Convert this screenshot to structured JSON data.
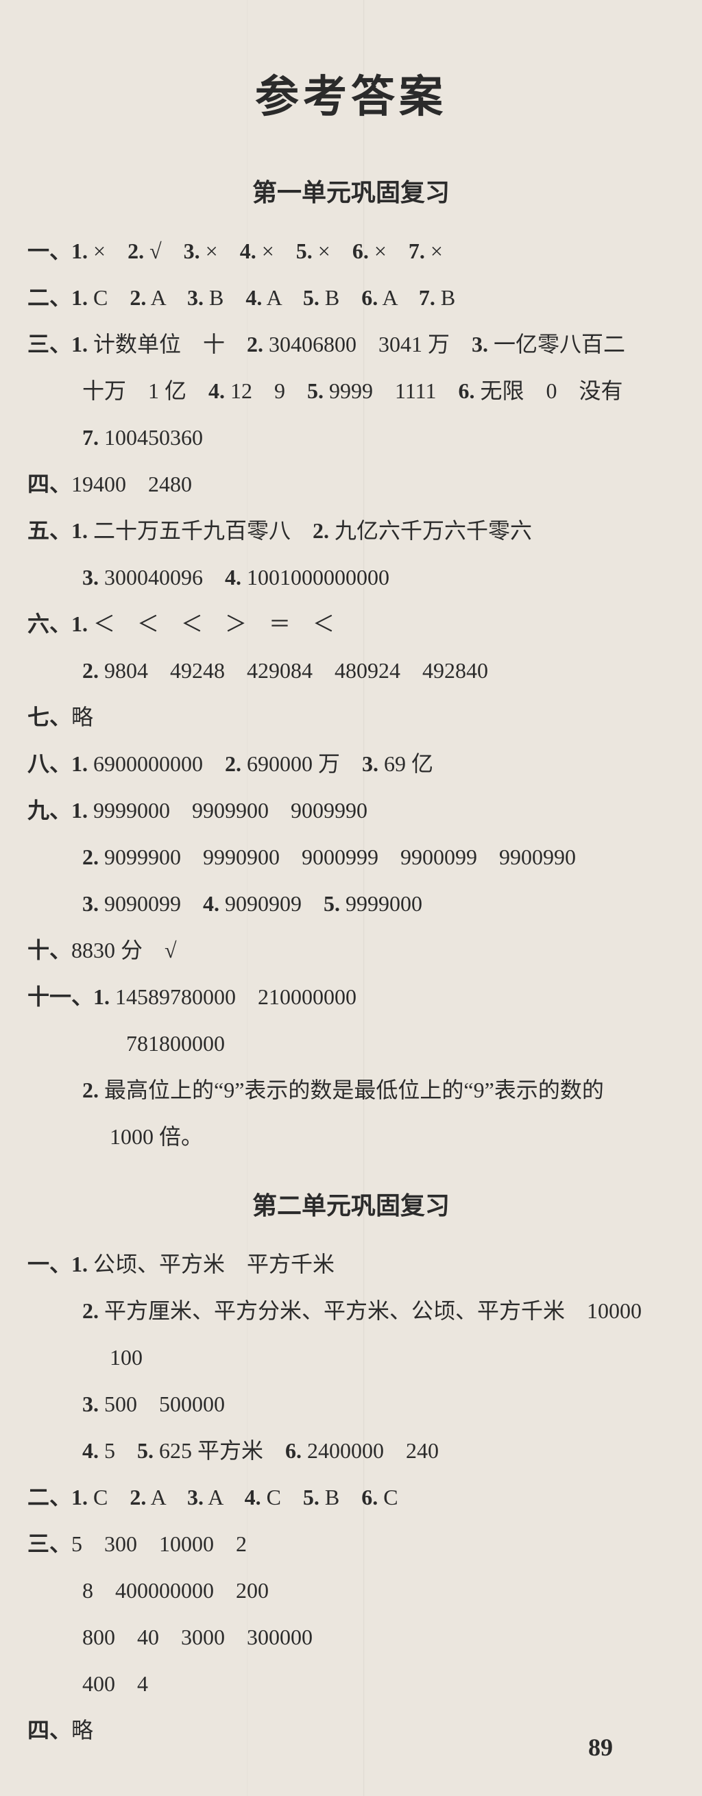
{
  "title": "参考答案",
  "page_number": "89",
  "sections": [
    {
      "heading": "第一单元巩固复习",
      "lines": [
        {
          "indent": 0,
          "runs": [
            {
              "t": "一、1.",
              "b": 1
            },
            {
              "t": " ×　"
            },
            {
              "t": "2.",
              "b": 1
            },
            {
              "t": " √　"
            },
            {
              "t": "3.",
              "b": 1
            },
            {
              "t": " ×　"
            },
            {
              "t": "4.",
              "b": 1
            },
            {
              "t": " ×　"
            },
            {
              "t": "5.",
              "b": 1
            },
            {
              "t": " ×　"
            },
            {
              "t": "6.",
              "b": 1
            },
            {
              "t": " ×　"
            },
            {
              "t": "7.",
              "b": 1
            },
            {
              "t": " ×"
            }
          ]
        },
        {
          "indent": 0,
          "runs": [
            {
              "t": "二、1.",
              "b": 1
            },
            {
              "t": " C　"
            },
            {
              "t": "2.",
              "b": 1
            },
            {
              "t": " A　"
            },
            {
              "t": "3.",
              "b": 1
            },
            {
              "t": " B　"
            },
            {
              "t": "4.",
              "b": 1
            },
            {
              "t": " A　"
            },
            {
              "t": "5.",
              "b": 1
            },
            {
              "t": " B　"
            },
            {
              "t": "6.",
              "b": 1
            },
            {
              "t": " A　"
            },
            {
              "t": "7.",
              "b": 1
            },
            {
              "t": " B"
            }
          ]
        },
        {
          "indent": 0,
          "runs": [
            {
              "t": "三、1.",
              "b": 1
            },
            {
              "t": " 计数单位　十　"
            },
            {
              "t": "2.",
              "b": 1
            },
            {
              "t": " 30406800　3041 万　"
            },
            {
              "t": "3.",
              "b": 1
            },
            {
              "t": " 一亿零八百二"
            }
          ]
        },
        {
          "indent": 1,
          "runs": [
            {
              "t": "十万　1 亿　"
            },
            {
              "t": "4.",
              "b": 1
            },
            {
              "t": " 12　9　"
            },
            {
              "t": "5.",
              "b": 1
            },
            {
              "t": " 9999　1111　"
            },
            {
              "t": "6.",
              "b": 1
            },
            {
              "t": " 无限　0　没有"
            }
          ]
        },
        {
          "indent": 1,
          "runs": [
            {
              "t": "7.",
              "b": 1
            },
            {
              "t": " 100450360"
            }
          ]
        },
        {
          "indent": 0,
          "runs": [
            {
              "t": "四、",
              "b": 1
            },
            {
              "t": "19400　2480"
            }
          ]
        },
        {
          "indent": 0,
          "runs": [
            {
              "t": "五、1.",
              "b": 1
            },
            {
              "t": " 二十万五千九百零八　"
            },
            {
              "t": "2.",
              "b": 1
            },
            {
              "t": " 九亿六千万六千零六"
            }
          ]
        },
        {
          "indent": 1,
          "runs": [
            {
              "t": "3.",
              "b": 1
            },
            {
              "t": " 300040096　"
            },
            {
              "t": "4.",
              "b": 1
            },
            {
              "t": " 1001000000000"
            }
          ]
        },
        {
          "indent": 0,
          "runs": [
            {
              "t": "六、1.",
              "b": 1
            },
            {
              "t": " ＜　＜　＜　＞　＝　＜"
            }
          ]
        },
        {
          "indent": 1,
          "runs": [
            {
              "t": "2.",
              "b": 1
            },
            {
              "t": " 9804　49248　429084　480924　492840"
            }
          ]
        },
        {
          "indent": 0,
          "runs": [
            {
              "t": "七、",
              "b": 1
            },
            {
              "t": "略"
            }
          ]
        },
        {
          "indent": 0,
          "runs": [
            {
              "t": "八、1.",
              "b": 1
            },
            {
              "t": " 6900000000　"
            },
            {
              "t": "2.",
              "b": 1
            },
            {
              "t": " 690000 万　"
            },
            {
              "t": "3.",
              "b": 1
            },
            {
              "t": " 69 亿"
            }
          ]
        },
        {
          "indent": 0,
          "runs": [
            {
              "t": "九、1.",
              "b": 1
            },
            {
              "t": " 9999000　9909900　9009990"
            }
          ]
        },
        {
          "indent": 1,
          "runs": [
            {
              "t": "2.",
              "b": 1
            },
            {
              "t": " 9099900　9990900　9000999　9900099　9900990"
            }
          ]
        },
        {
          "indent": 1,
          "runs": [
            {
              "t": "3.",
              "b": 1
            },
            {
              "t": " 9090099　"
            },
            {
              "t": "4.",
              "b": 1
            },
            {
              "t": " 9090909　"
            },
            {
              "t": "5.",
              "b": 1
            },
            {
              "t": " 9999000"
            }
          ]
        },
        {
          "indent": 0,
          "runs": [
            {
              "t": "十、",
              "b": 1
            },
            {
              "t": "8830 分　√"
            }
          ]
        },
        {
          "indent": 0,
          "runs": [
            {
              "t": "十一、1.",
              "b": 1
            },
            {
              "t": " 14589780000　210000000"
            }
          ]
        },
        {
          "indent": 1,
          "runs": [
            {
              "t": "　　781800000"
            }
          ]
        },
        {
          "indent": 1,
          "runs": [
            {
              "t": "2.",
              "b": 1
            },
            {
              "t": " 最高位上的“9”表示的数是最低位上的“9”表示的数的"
            }
          ]
        },
        {
          "indent": 1,
          "runs": [
            {
              "t": "　 1000 倍。"
            }
          ]
        }
      ]
    },
    {
      "heading": "第二单元巩固复习",
      "lines": [
        {
          "indent": 0,
          "runs": [
            {
              "t": "一、1.",
              "b": 1
            },
            {
              "t": " 公顷、平方米　平方千米"
            }
          ]
        },
        {
          "indent": 1,
          "runs": [
            {
              "t": "2.",
              "b": 1
            },
            {
              "t": " 平方厘米、平方分米、平方米、公顷、平方千米　10000"
            }
          ]
        },
        {
          "indent": 1,
          "runs": [
            {
              "t": "　 100"
            }
          ]
        },
        {
          "indent": 1,
          "runs": [
            {
              "t": "3.",
              "b": 1
            },
            {
              "t": " 500　500000"
            }
          ]
        },
        {
          "indent": 1,
          "runs": [
            {
              "t": "4.",
              "b": 1
            },
            {
              "t": " 5　"
            },
            {
              "t": "5.",
              "b": 1
            },
            {
              "t": " 625 平方米　"
            },
            {
              "t": "6.",
              "b": 1
            },
            {
              "t": " 2400000　240"
            }
          ]
        },
        {
          "indent": 0,
          "runs": [
            {
              "t": "二、1.",
              "b": 1
            },
            {
              "t": " C　"
            },
            {
              "t": "2.",
              "b": 1
            },
            {
              "t": " A　"
            },
            {
              "t": "3.",
              "b": 1
            },
            {
              "t": " A　"
            },
            {
              "t": "4.",
              "b": 1
            },
            {
              "t": " C　"
            },
            {
              "t": "5.",
              "b": 1
            },
            {
              "t": " B　"
            },
            {
              "t": "6.",
              "b": 1
            },
            {
              "t": " C"
            }
          ]
        },
        {
          "indent": 0,
          "runs": [
            {
              "t": "三、",
              "b": 1
            },
            {
              "t": "5　300　10000　2"
            }
          ]
        },
        {
          "indent": 1,
          "runs": [
            {
              "t": "8　400000000　200"
            }
          ]
        },
        {
          "indent": 1,
          "runs": [
            {
              "t": "800　40　3000　300000"
            }
          ]
        },
        {
          "indent": 1,
          "runs": [
            {
              "t": "400　4"
            }
          ]
        },
        {
          "indent": 0,
          "runs": [
            {
              "t": "四、",
              "b": 1
            },
            {
              "t": "略"
            }
          ]
        }
      ]
    }
  ]
}
